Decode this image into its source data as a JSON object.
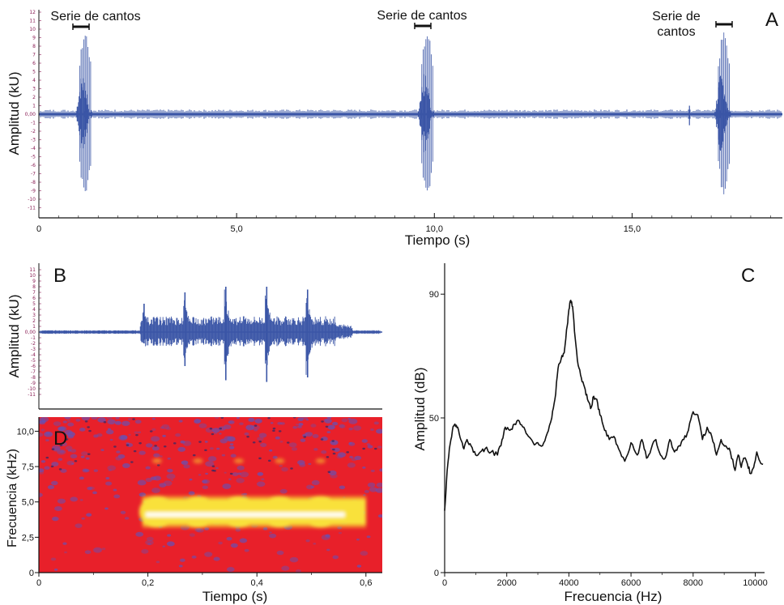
{
  "chart_data": [
    {
      "panel": "A",
      "type": "line",
      "title": "",
      "xlabel": "Tiempo (s)",
      "ylabel": "Amplitud (kU)",
      "xlim": [
        0,
        18.8
      ],
      "ylim": [
        -12,
        12
      ],
      "xticks": [
        0,
        5,
        10,
        15
      ],
      "xtick_labels": [
        "0",
        "5,0",
        "10,0",
        "15,0"
      ],
      "yticks": [
        12,
        11,
        10,
        9,
        8,
        7,
        6,
        5,
        4,
        3,
        2,
        1,
        0,
        -1,
        -2,
        -3,
        -4,
        -5,
        -6,
        -7,
        -8,
        -9,
        -10,
        -11
      ],
      "ytick_labels": [
        "12",
        "11",
        "10",
        "9",
        "8",
        "7",
        "6",
        "5",
        "4",
        "3",
        "2",
        "1",
        "0,00",
        "-1",
        "-2",
        "-3",
        "-4",
        "-5",
        "-6",
        "-7",
        "-8",
        "-9",
        "-10",
        "-11"
      ],
      "series_color": "#3a55a6",
      "bursts": [
        {
          "start": 0.95,
          "end": 1.35,
          "peak": 9.9
        },
        {
          "start": 9.6,
          "end": 10.0,
          "peak": 9.9
        },
        {
          "start": 17.1,
          "end": 17.5,
          "peak": 9.8
        }
      ],
      "annotations": [
        {
          "text": "Serie de cantos",
          "x": 1.1
        },
        {
          "text": "Serie de cantos",
          "x": 9.75
        },
        {
          "text": "Serie de",
          "x2": "cantos",
          "x": 17.3
        }
      ],
      "panel_label": "A"
    },
    {
      "panel": "B",
      "type": "line",
      "title": "",
      "xlabel": "",
      "ylabel": "Amplitud (kU)",
      "xlim": [
        0,
        0.63
      ],
      "ylim": [
        -12,
        12
      ],
      "yticks": [
        11,
        10,
        9,
        8,
        7,
        6,
        5,
        4,
        3,
        2,
        1,
        0,
        -1,
        -2,
        -3,
        -4,
        -5,
        -6,
        -7,
        -8,
        -9,
        -10,
        -11
      ],
      "ytick_labels": [
        "11",
        "10",
        "9",
        "8",
        "7",
        "6",
        "5",
        "4",
        "3",
        "2",
        "1",
        "0,00",
        "-1",
        "-2",
        "-3",
        "-4",
        "-5",
        "-6",
        "-7",
        "-8",
        "-9",
        "-10",
        "-11"
      ],
      "series_color": "#3a55a6",
      "pulses": [
        {
          "t": 0.19,
          "up": 5.0,
          "down": -2.0
        },
        {
          "t": 0.265,
          "up": 7.0,
          "down": -6.0
        },
        {
          "t": 0.34,
          "up": 8.0,
          "down": -8.5
        },
        {
          "t": 0.415,
          "up": 8.0,
          "down": -8.8
        },
        {
          "t": 0.49,
          "up": 7.5,
          "down": -8.0
        }
      ],
      "panel_label": "B"
    },
    {
      "panel": "D",
      "type": "heatmap",
      "title": "",
      "xlabel": "Tiempo (s)",
      "ylabel": "Frecuencia (kHz)",
      "xlim": [
        0,
        0.63
      ],
      "ylim": [
        0,
        11
      ],
      "xticks": [
        0,
        0.2,
        0.4,
        0.6
      ],
      "xtick_labels": [
        "0",
        "0,2",
        "0,4",
        "0,6"
      ],
      "yticks": [
        0,
        2.5,
        5.0,
        7.5,
        10.0
      ],
      "ytick_labels": [
        "0",
        "2,5",
        "5,0",
        "7,5",
        "10,0"
      ],
      "band_khz": [
        3.4,
        5.2
      ],
      "band_center_khz": 4.1,
      "band_time_s": [
        0.19,
        0.6
      ],
      "background_color": "#e8202a",
      "noise_color": "#6a4fb0",
      "band_color": "#f9e13a",
      "core_color": "#ffffff",
      "panel_label": "D"
    },
    {
      "panel": "C",
      "type": "line",
      "title": "",
      "xlabel": "Frecuencia (Hz)",
      "ylabel": "Amplitud (dB)",
      "xlim": [
        0,
        10300
      ],
      "ylim": [
        0,
        100
      ],
      "xticks": [
        0,
        2000,
        4000,
        6000,
        8000,
        10000
      ],
      "xtick_labels": [
        "0",
        "2000",
        "4000",
        "6000",
        "8000",
        "10000"
      ],
      "yticks": [
        0,
        50,
        90
      ],
      "ytick_labels": [
        "0",
        "50",
        "90"
      ],
      "x": [
        0,
        80,
        150,
        250,
        330,
        420,
        520,
        620,
        720,
        850,
        1000,
        1150,
        1300,
        1500,
        1700,
        1850,
        1950,
        2100,
        2250,
        2400,
        2550,
        2700,
        2850,
        3000,
        3150,
        3300,
        3450,
        3550,
        3650,
        3750,
        3850,
        3950,
        4000,
        4060,
        4120,
        4200,
        4300,
        4400,
        4500,
        4600,
        4700,
        4800,
        4900,
        5000,
        5150,
        5300,
        5450,
        5600,
        5800,
        6000,
        6200,
        6350,
        6500,
        6650,
        6800,
        6950,
        7100,
        7250,
        7400,
        7550,
        7700,
        7850,
        8000,
        8150,
        8300,
        8450,
        8600,
        8750,
        8900,
        9050,
        9200,
        9350,
        9450,
        9550,
        9650,
        9750,
        9850,
        9950,
        10050,
        10150,
        10250
      ],
      "y": [
        20,
        33,
        40,
        46,
        48,
        47,
        43,
        40,
        43,
        41,
        38,
        39,
        40,
        39,
        38,
        43,
        47,
        46,
        48,
        49,
        47,
        44,
        42,
        42,
        41,
        45,
        50,
        56,
        66,
        69,
        71,
        80,
        85,
        88,
        86,
        76,
        67,
        63,
        60,
        56,
        53,
        57,
        56,
        51,
        46,
        43,
        44,
        40,
        36,
        42,
        38,
        43,
        37,
        40,
        43,
        38,
        37,
        43,
        39,
        41,
        43,
        46,
        52,
        51,
        43,
        47,
        44,
        38,
        43,
        41,
        39,
        33,
        38,
        34,
        37,
        35,
        32,
        34,
        39,
        36,
        35
      ],
      "series_color": "#111111",
      "panel_label": "C"
    }
  ]
}
